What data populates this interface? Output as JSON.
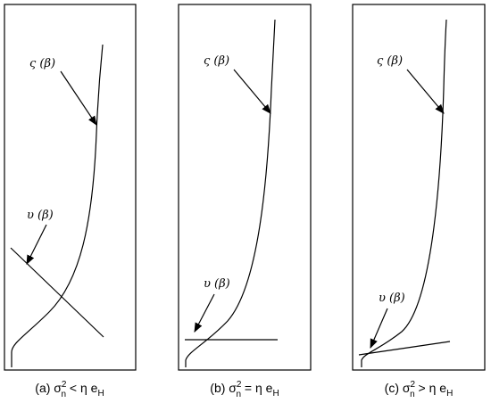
{
  "panels": [
    {
      "sigma_label": "ς (β)",
      "upsilon_label": "υ (β)",
      "caption": {
        "prefix": "(a) σ",
        "sub": "n",
        "sup": "2",
        "relation": " < η e",
        "sub2": "H"
      }
    },
    {
      "sigma_label": "ς (β)",
      "upsilon_label": "υ (β)",
      "caption": {
        "prefix": "(b) σ",
        "sub": "n",
        "sup": "2",
        "relation": " = η e",
        "sub2": "H"
      }
    },
    {
      "sigma_label": "ς (β)",
      "upsilon_label": "υ (β)",
      "caption": {
        "prefix": "(c) σ",
        "sub": "n",
        "sup": "2",
        "relation": " > η e",
        "sub2": "H"
      }
    }
  ]
}
